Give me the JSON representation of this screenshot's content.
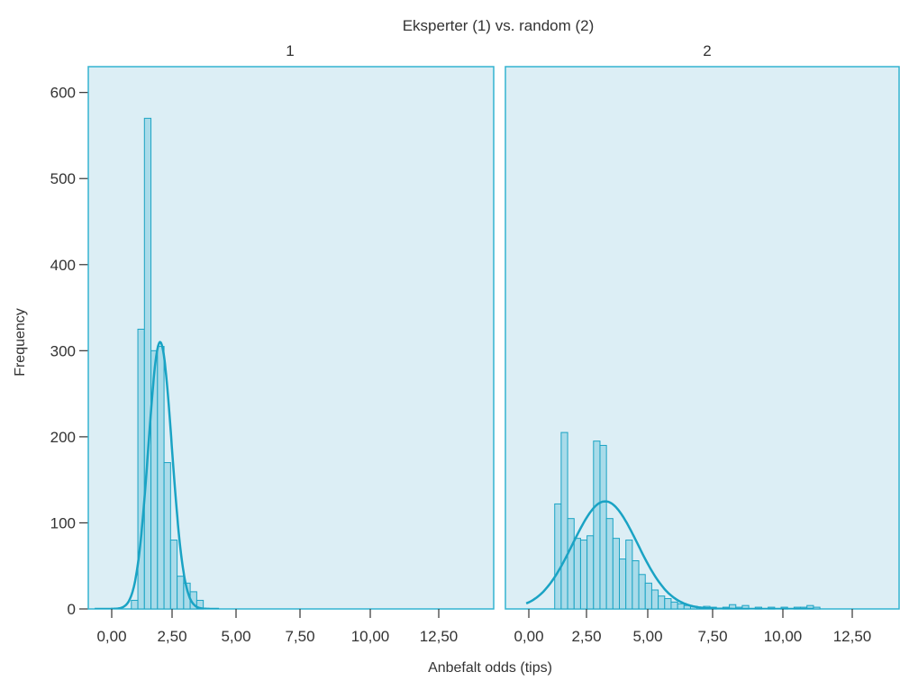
{
  "colors": {
    "panel_bg": "#dceef5",
    "panel_border": "#33b3d0",
    "bar_fill": "#a9dbe9",
    "bar_stroke": "#1aa3c4",
    "curve": "#1aa3c4"
  },
  "chart_data": {
    "type": "bar",
    "subtype": "faceted histogram with normal curve overlay",
    "super_title": "Eksperter (1) vs. random (2)",
    "xlabel": "Anbefalt odds (tips)",
    "ylabel": "Frequency",
    "ylim": [
      0,
      630
    ],
    "xlim": [
      -0.75,
      14.6
    ],
    "y_ticks": [
      0,
      100,
      200,
      300,
      400,
      500,
      600
    ],
    "y_tick_labels": [
      "0",
      "100",
      "200",
      "300",
      "400",
      "500",
      "600"
    ],
    "x_ticks": [
      0,
      2.5,
      5,
      7.5,
      10,
      12.5
    ],
    "x_tick_labels": [
      "0,00",
      "2,50",
      "5,00",
      "7,50",
      "10,00",
      "12,50"
    ],
    "bin_width": 0.25,
    "facets": [
      {
        "label": "1",
        "bins": [
          {
            "x0": 0.75,
            "count": 10
          },
          {
            "x0": 1.0,
            "count": 325
          },
          {
            "x0": 1.25,
            "count": 570
          },
          {
            "x0": 1.5,
            "count": 300
          },
          {
            "x0": 1.75,
            "count": 305
          },
          {
            "x0": 2.0,
            "count": 170
          },
          {
            "x0": 2.25,
            "count": 80
          },
          {
            "x0": 2.5,
            "count": 38
          },
          {
            "x0": 2.75,
            "count": 30
          },
          {
            "x0": 3.0,
            "count": 20
          },
          {
            "x0": 3.25,
            "count": 10
          }
        ],
        "normal_curve": {
          "mean": 1.85,
          "sd": 0.45,
          "peak": 310,
          "x_range": [
            -0.65,
            4.1
          ]
        }
      },
      {
        "label": "2",
        "bins": [
          {
            "x0": 1.0,
            "count": 122
          },
          {
            "x0": 1.25,
            "count": 205
          },
          {
            "x0": 1.5,
            "count": 105
          },
          {
            "x0": 1.75,
            "count": 82
          },
          {
            "x0": 2.0,
            "count": 80
          },
          {
            "x0": 2.25,
            "count": 85
          },
          {
            "x0": 2.5,
            "count": 195
          },
          {
            "x0": 2.75,
            "count": 190
          },
          {
            "x0": 3.0,
            "count": 105
          },
          {
            "x0": 3.25,
            "count": 82
          },
          {
            "x0": 3.5,
            "count": 58
          },
          {
            "x0": 3.75,
            "count": 80
          },
          {
            "x0": 4.0,
            "count": 56
          },
          {
            "x0": 4.25,
            "count": 40
          },
          {
            "x0": 4.5,
            "count": 30
          },
          {
            "x0": 4.75,
            "count": 22
          },
          {
            "x0": 5.0,
            "count": 15
          },
          {
            "x0": 5.25,
            "count": 12
          },
          {
            "x0": 5.5,
            "count": 8
          },
          {
            "x0": 5.75,
            "count": 6
          },
          {
            "x0": 6.0,
            "count": 4
          },
          {
            "x0": 6.25,
            "count": 3
          },
          {
            "x0": 6.5,
            "count": 2
          },
          {
            "x0": 6.75,
            "count": 3
          },
          {
            "x0": 7.0,
            "count": 2
          },
          {
            "x0": 7.5,
            "count": 2
          },
          {
            "x0": 7.75,
            "count": 5
          },
          {
            "x0": 8.0,
            "count": 2
          },
          {
            "x0": 8.25,
            "count": 4
          },
          {
            "x0": 8.75,
            "count": 2
          },
          {
            "x0": 9.25,
            "count": 2
          },
          {
            "x0": 9.75,
            "count": 2
          },
          {
            "x0": 10.25,
            "count": 2
          },
          {
            "x0": 10.5,
            "count": 2
          },
          {
            "x0": 10.75,
            "count": 4
          },
          {
            "x0": 11.0,
            "count": 2
          }
        ],
        "normal_curve": {
          "mean": 2.95,
          "sd": 1.25,
          "peak": 125,
          "x_range": [
            -0.1,
            11.0
          ]
        }
      }
    ]
  }
}
